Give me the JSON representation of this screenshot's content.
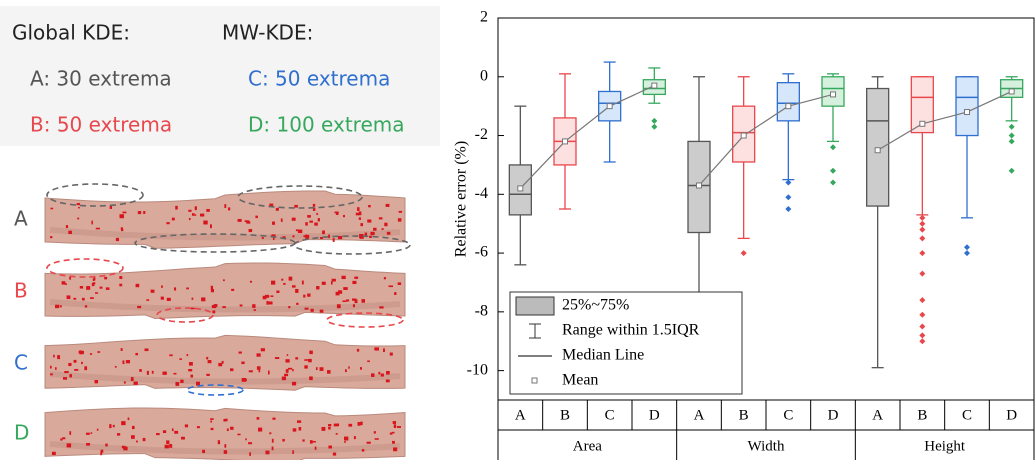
{
  "left_panel": {
    "global_title": "Global KDE:",
    "mw_title": "MW-KDE:",
    "legend": [
      {
        "text": "A: 30 extrema",
        "color": "#555555"
      },
      {
        "text": "C: 50 extrema",
        "color": "#2f6fd0"
      },
      {
        "text": "B: 50 extrema",
        "color": "#e8474c"
      },
      {
        "text": "D: 100 extrema",
        "color": "#36a85e"
      }
    ],
    "rows": [
      {
        "label": "A",
        "color": "#555555"
      },
      {
        "label": "B",
        "color": "#e8474c"
      },
      {
        "label": "C",
        "color": "#2f6fd0"
      },
      {
        "label": "D",
        "color": "#36a85e"
      }
    ]
  },
  "chart_data": {
    "type": "box",
    "ylabel": "Relative error (%)",
    "ylim": [
      -11,
      2
    ],
    "yticks": [
      2,
      0,
      -2,
      -4,
      -6,
      -8,
      -10
    ],
    "legend": {
      "box": "25%~75%",
      "whisker": "Range within 1.5IQR",
      "median": "Median Line",
      "mean": "Mean"
    },
    "groups": [
      {
        "name": "Area",
        "boxes": [
          {
            "label": "A",
            "color": "#555555",
            "fill": "#cccccc",
            "min": -6.4,
            "q1": -4.7,
            "median": -4.0,
            "q3": -3.0,
            "max": -1.0,
            "mean": -3.8,
            "outliers": []
          },
          {
            "label": "B",
            "color": "#e8474c",
            "fill": "#fde0e0",
            "min": -4.5,
            "q1": -3.0,
            "median": -2.2,
            "q3": -1.4,
            "max": 0.1,
            "mean": -2.2,
            "outliers": []
          },
          {
            "label": "C",
            "color": "#2f6fd0",
            "fill": "#d6e6fb",
            "min": -2.9,
            "q1": -1.5,
            "median": -0.9,
            "q3": -0.5,
            "max": 0.5,
            "mean": -1.0,
            "outliers": []
          },
          {
            "label": "D",
            "color": "#36a85e",
            "fill": "#d5f0dd",
            "min": -0.9,
            "q1": -0.6,
            "median": -0.4,
            "q3": -0.1,
            "max": 0.3,
            "mean": -0.3,
            "outliers": [
              -1.5,
              -1.7
            ]
          }
        ]
      },
      {
        "name": "Width",
        "boxes": [
          {
            "label": "A",
            "color": "#555555",
            "fill": "#cccccc",
            "min": -8.1,
            "q1": -5.3,
            "median": -3.7,
            "q3": -2.2,
            "max": 0,
            "mean": -3.7,
            "outliers": []
          },
          {
            "label": "B",
            "color": "#e8474c",
            "fill": "#fde0e0",
            "min": -5.5,
            "q1": -2.9,
            "median": -1.9,
            "q3": -1.0,
            "max": 0,
            "mean": -2.0,
            "outliers": [
              -6.0
            ]
          },
          {
            "label": "C",
            "color": "#2f6fd0",
            "fill": "#d6e6fb",
            "min": -3.5,
            "q1": -1.5,
            "median": -0.9,
            "q3": -0.2,
            "max": 0.1,
            "mean": -1.0,
            "outliers": [
              -3.6,
              -4.1,
              -4.5
            ]
          },
          {
            "label": "D",
            "color": "#36a85e",
            "fill": "#d5f0dd",
            "min": -2.2,
            "q1": -1.0,
            "median": -0.4,
            "q3": 0,
            "max": 0.1,
            "mean": -0.6,
            "outliers": [
              -2.4,
              -3.2,
              -3.6
            ]
          }
        ]
      },
      {
        "name": "Height",
        "boxes": [
          {
            "label": "A",
            "color": "#555555",
            "fill": "#cccccc",
            "min": -9.9,
            "q1": -4.4,
            "median": -1.5,
            "q3": -0.4,
            "max": 0,
            "mean": -2.5,
            "outliers": []
          },
          {
            "label": "B",
            "color": "#e8474c",
            "fill": "#fde0e0",
            "min": -4.7,
            "q1": -1.9,
            "median": -0.7,
            "q3": 0,
            "max": 0,
            "mean": -1.6,
            "outliers": [
              -4.8,
              -5.0,
              -5.2,
              -5.5,
              -6.0,
              -6.7,
              -7.6,
              -8.1,
              -8.5,
              -8.8,
              -9.0
            ]
          },
          {
            "label": "C",
            "color": "#2f6fd0",
            "fill": "#d6e6fb",
            "min": -4.8,
            "q1": -2.0,
            "median": -0.7,
            "q3": 0,
            "max": 0,
            "mean": -1.2,
            "outliers": [
              -5.8,
              -6.0
            ]
          },
          {
            "label": "D",
            "color": "#36a85e",
            "fill": "#d5f0dd",
            "min": -1.5,
            "q1": -0.7,
            "median": -0.4,
            "q3": -0.1,
            "max": 0,
            "mean": -0.5,
            "outliers": [
              -1.7,
              -2.0,
              -2.2,
              -3.2
            ]
          }
        ]
      }
    ]
  }
}
